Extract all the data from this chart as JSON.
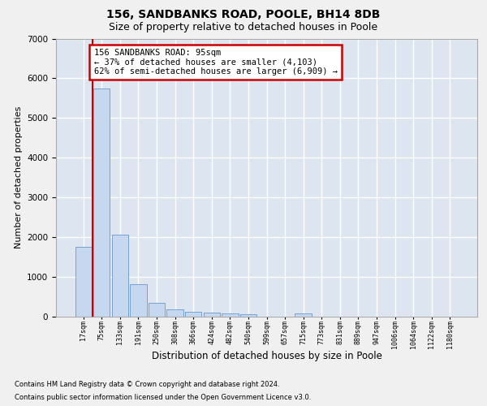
{
  "title_line1": "156, SANDBANKS ROAD, POOLE, BH14 8DB",
  "title_line2": "Size of property relative to detached houses in Poole",
  "xlabel": "Distribution of detached houses by size in Poole",
  "ylabel": "Number of detached properties",
  "categories": [
    "17sqm",
    "75sqm",
    "133sqm",
    "191sqm",
    "250sqm",
    "308sqm",
    "366sqm",
    "424sqm",
    "482sqm",
    "540sqm",
    "599sqm",
    "657sqm",
    "715sqm",
    "773sqm",
    "831sqm",
    "889sqm",
    "947sqm",
    "1006sqm",
    "1064sqm",
    "1122sqm",
    "1180sqm"
  ],
  "values": [
    1750,
    5750,
    2060,
    820,
    340,
    185,
    115,
    95,
    90,
    65,
    0,
    0,
    75,
    0,
    0,
    0,
    0,
    0,
    0,
    0,
    0
  ],
  "bar_color": "#c5d8f0",
  "bar_edge_color": "#6699cc",
  "annotation_text": "156 SANDBANKS ROAD: 95sqm\n← 37% of detached houses are smaller (4,103)\n62% of semi-detached houses are larger (6,909) →",
  "annotation_box_color": "#ffffff",
  "annotation_box_edge": "#cc0000",
  "red_line_color": "#cc0000",
  "ylim": [
    0,
    7000
  ],
  "yticks": [
    0,
    1000,
    2000,
    3000,
    4000,
    5000,
    6000,
    7000
  ],
  "footnote1": "Contains HM Land Registry data © Crown copyright and database right 2024.",
  "footnote2": "Contains public sector information licensed under the Open Government Licence v3.0.",
  "plot_bg_color": "#dde6f0",
  "grid_color": "#ffffff",
  "fig_bg_color": "#f0f0f0"
}
